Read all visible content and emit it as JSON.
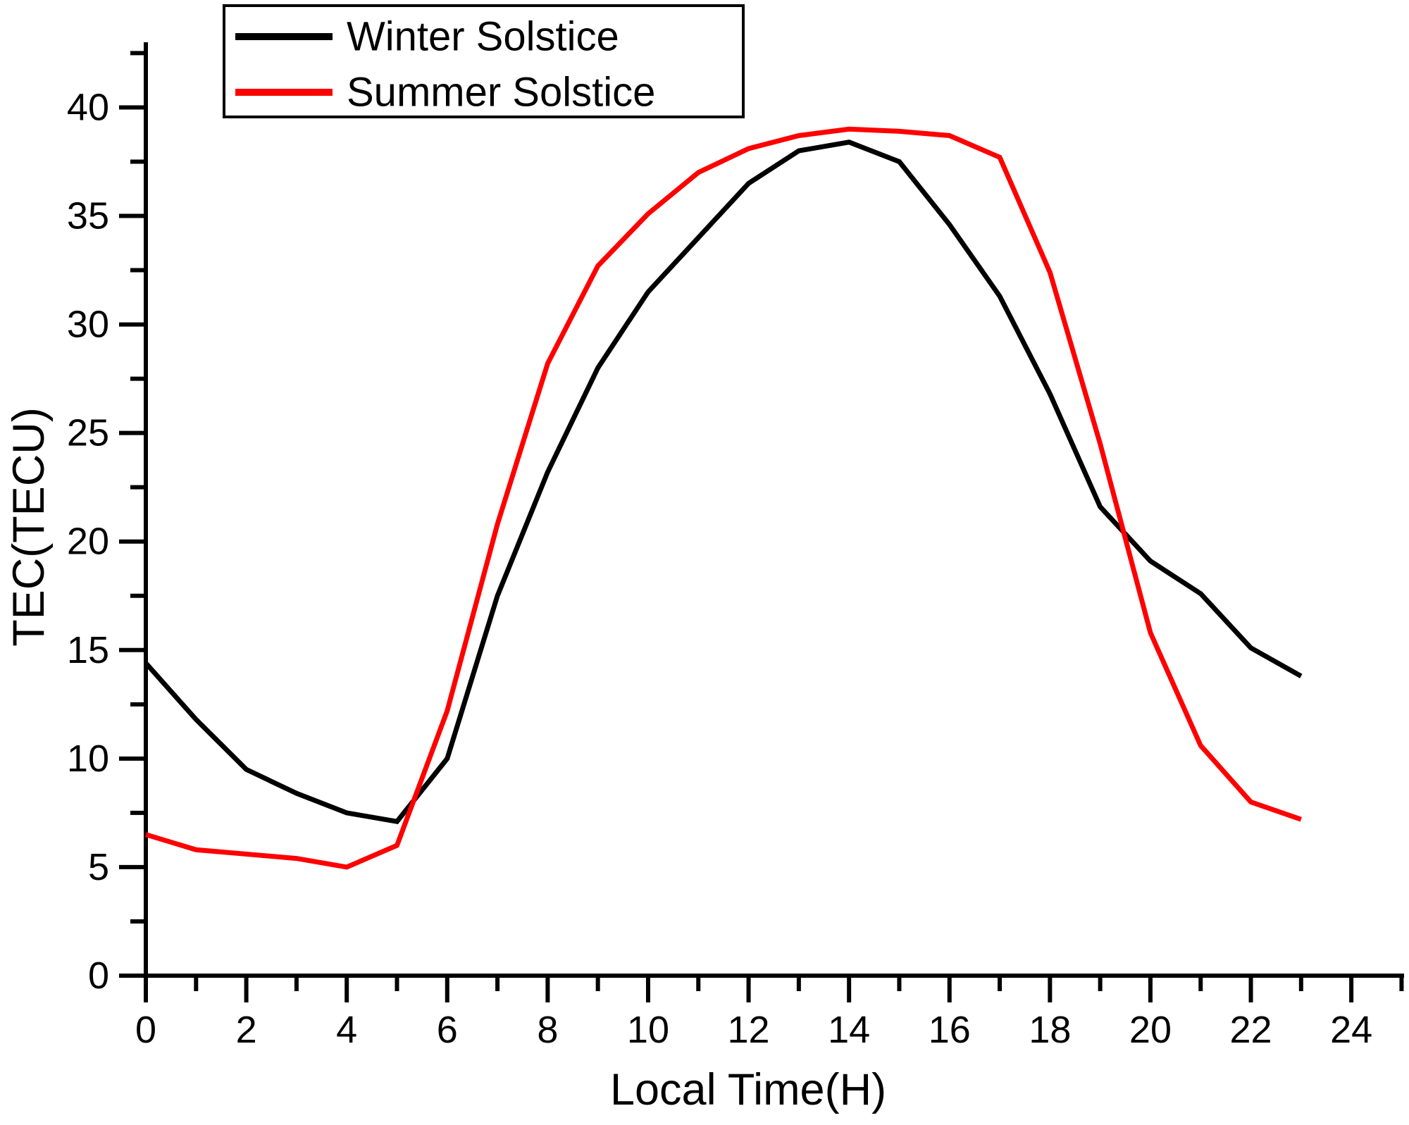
{
  "chart_data": {
    "type": "line",
    "title": "",
    "xlabel": "Local Time(H)",
    "ylabel": "TEC(TECU)",
    "x": [
      0,
      1,
      2,
      3,
      4,
      5,
      6,
      7,
      8,
      9,
      10,
      11,
      12,
      13,
      14,
      15,
      16,
      17,
      18,
      19,
      20,
      21,
      22,
      23
    ],
    "series": [
      {
        "name": "Winter Solstice",
        "color": "#000000",
        "values": [
          14.4,
          11.8,
          9.5,
          8.4,
          7.5,
          7.1,
          10.0,
          17.5,
          23.2,
          28.0,
          31.5,
          34.0,
          36.5,
          38.0,
          38.4,
          37.5,
          34.6,
          31.3,
          26.8,
          21.6,
          19.1,
          17.6,
          15.1,
          13.8
        ]
      },
      {
        "name": "Summer Solstice",
        "color": "#ff0000",
        "values": [
          6.5,
          5.8,
          5.6,
          5.4,
          5.0,
          6.0,
          12.2,
          20.8,
          28.2,
          32.7,
          35.1,
          37.0,
          38.1,
          38.7,
          39.0,
          38.9,
          38.7,
          37.7,
          32.4,
          24.5,
          15.8,
          10.6,
          8.0,
          7.2
        ]
      }
    ],
    "xlim": [
      0,
      25.05
    ],
    "ylim": [
      0,
      43
    ],
    "x_major_ticks": [
      0,
      2,
      4,
      6,
      8,
      10,
      12,
      14,
      16,
      18,
      20,
      22,
      24
    ],
    "x_minor_ticks": [
      1,
      3,
      5,
      7,
      9,
      11,
      13,
      15,
      17,
      19,
      21,
      23,
      25
    ],
    "y_major_ticks": [
      0,
      5,
      10,
      15,
      20,
      25,
      30,
      35,
      40
    ],
    "y_minor_ticks": [
      2.5,
      7.5,
      12.5,
      17.5,
      22.5,
      27.5,
      32.5,
      37.5,
      42.5
    ],
    "grid": false,
    "legend_position": "top-left"
  },
  "colors": {
    "axis": "#000000",
    "background": "#ffffff",
    "winter": "#000000",
    "summer": "#ff0000"
  }
}
